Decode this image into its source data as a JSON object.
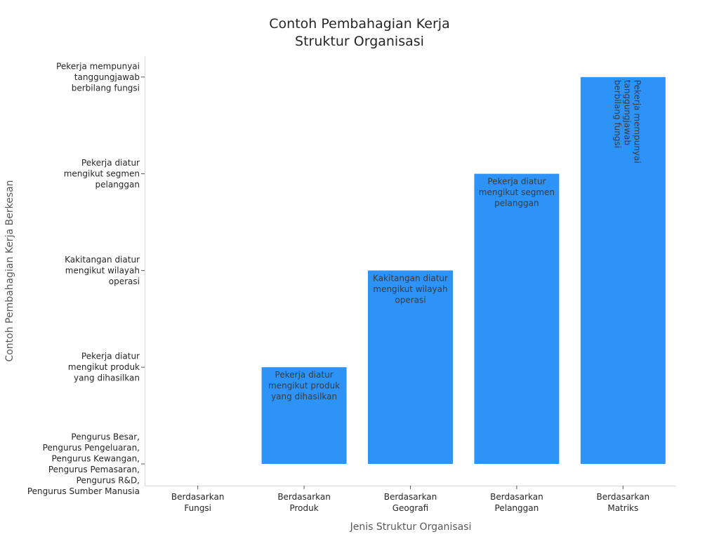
{
  "chart_data": {
    "type": "bar",
    "title": [
      "Contoh Pembahagian Kerja",
      "Struktur Organisasi"
    ],
    "xlabel": "Jenis Struktur Organisasi",
    "ylabel": "Contoh Pembahagian Kerja Berkesan",
    "categories": [
      [
        "Berdasarkan",
        "Fungsi"
      ],
      [
        "Berdasarkan",
        "Produk"
      ],
      [
        "Berdasarkan",
        "Geografi"
      ],
      [
        "Berdasarkan",
        "Pelanggan"
      ],
      [
        "Berdasarkan",
        "Matriks"
      ]
    ],
    "y_categories": [
      [
        "Pengurus Besar,",
        "Pengurus Pengeluaran,",
        "Pengurus Kewangan,",
        "Pengurus Pemasaran,",
        "Pengurus R&D,",
        "Pengurus Sumber Manusia"
      ],
      [
        "Pekerja diatur",
        "mengikut produk",
        "yang dihasilkan"
      ],
      [
        "Kakitangan diatur",
        "mengikut wilayah",
        "operasi"
      ],
      [
        "Pekerja diatur",
        "mengikut segmen",
        "pelanggan"
      ],
      [
        "Pekerja mempunyai",
        "tanggungjawab",
        "berbilang fungsi"
      ]
    ],
    "values": [
      0,
      1,
      2,
      3,
      4
    ],
    "bar_labels": [
      [],
      [
        "Pekerja diatur",
        "mengikut produk",
        "yang dihasilkan"
      ],
      [
        "Kakitangan diatur",
        "mengikut wilayah",
        "operasi"
      ],
      [
        "Pekerja diatur",
        "mengikut segmen",
        "pelanggan"
      ],
      [
        "Pekerja mempunyai",
        "tanggungjawab",
        "berbilang fungsi"
      ]
    ],
    "rotated_label_index": 4,
    "bar_color": "#2e93f7",
    "grid": false,
    "legend": "none"
  }
}
